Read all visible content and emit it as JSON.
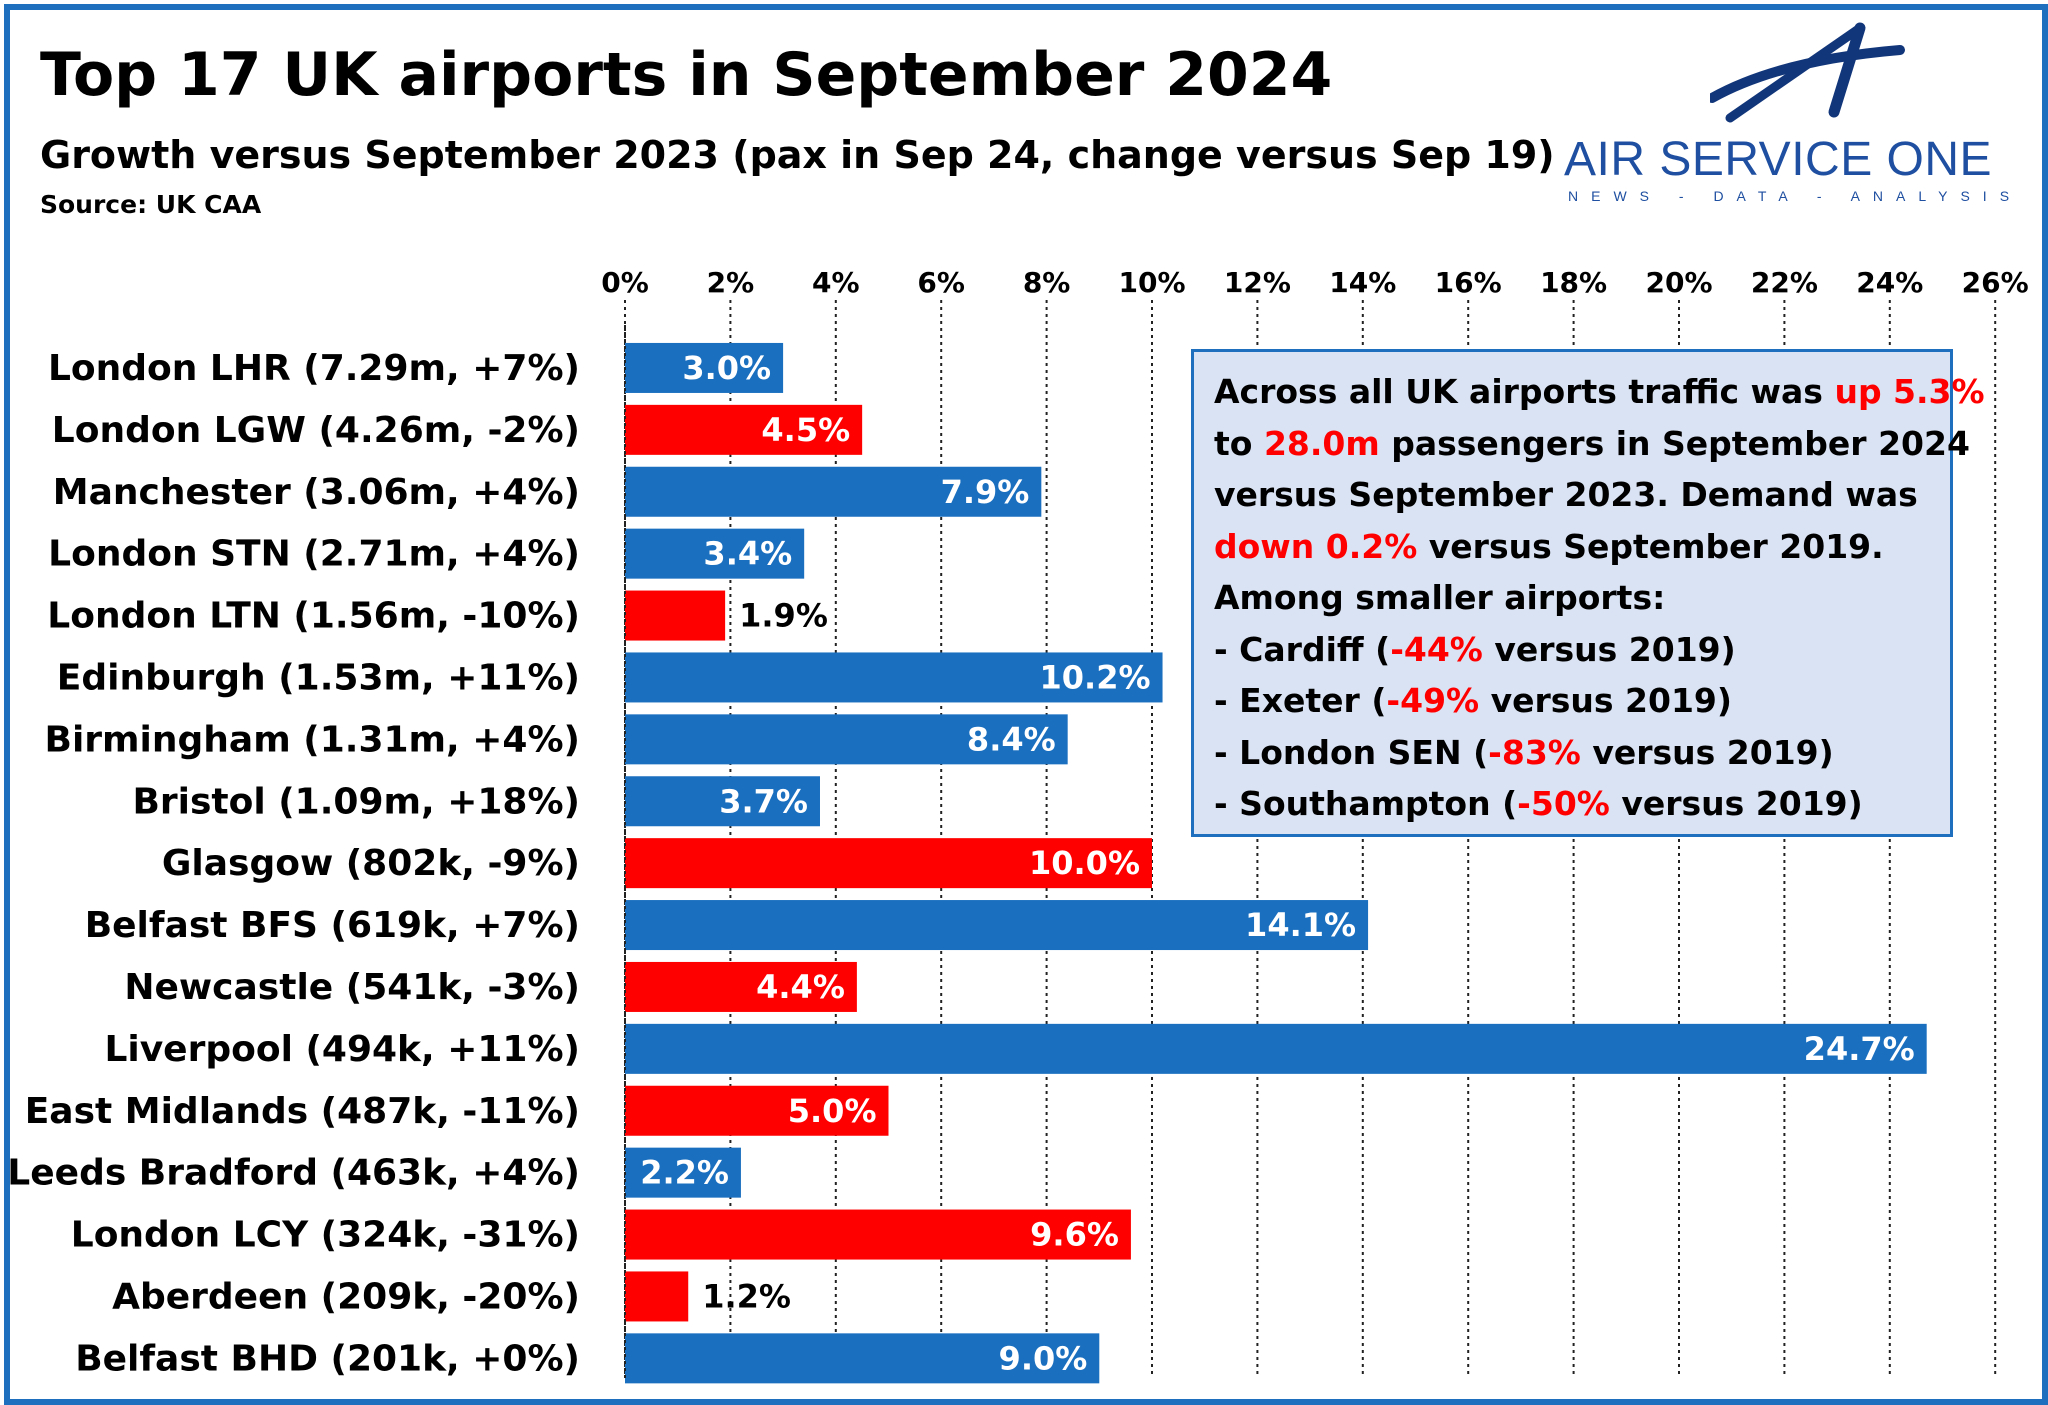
{
  "header": {
    "title": "Top 17 UK airports in September 2024",
    "subtitle": "Growth versus September 2023 (pax in Sep 24, change versus Sep 19)",
    "source": "Source: UK CAA"
  },
  "logo": {
    "name": "AIR SERVICE ONE",
    "tagline": "NEWS - DATA - ANALYSIS",
    "icon": "stylised-A-wing-icon"
  },
  "colors": {
    "accent": "#1f6fbf",
    "positive_bar": "#1a6fbf",
    "negative_bar": "#ff0000",
    "note_bg": "#dae3f3"
  },
  "chart_data": {
    "type": "bar",
    "orientation": "horizontal",
    "title": "Top 17 UK airports in September 2024",
    "xlim": [
      0,
      26
    ],
    "x_ticks": [
      "0%",
      "2%",
      "4%",
      "6%",
      "8%",
      "10%",
      "12%",
      "14%",
      "16%",
      "18%",
      "20%",
      "22%",
      "24%",
      "26%"
    ],
    "grid": "vertical dotted",
    "categories": [
      "London LHR (7.29m, +7%)",
      "London LGW (4.26m, -2%)",
      "Manchester (3.06m, +4%)",
      "London STN (2.71m, +4%)",
      "London LTN (1.56m, -10%)",
      "Edinburgh (1.53m, +11%)",
      "Birmingham (1.31m, +4%)",
      "Bristol (1.09m, +18%)",
      "Glasgow (802k, -9%)",
      "Belfast BFS (619k, +7%)",
      "Newcastle (541k, -3%)",
      "Liverpool (494k, +11%)",
      "East Midlands (487k, -11%)",
      "Leeds Bradford (463k, +4%)",
      "London LCY (324k, -31%)",
      "Aberdeen (209k, -20%)",
      "Belfast BHD (201k, +0%)"
    ],
    "values": [
      3.0,
      4.5,
      7.9,
      3.4,
      1.9,
      10.2,
      8.4,
      3.7,
      10.0,
      14.1,
      4.4,
      24.7,
      5.0,
      2.2,
      9.6,
      1.2,
      9.0
    ],
    "labels": [
      "3.0%",
      "4.5%",
      "7.9%",
      "3.4%",
      "1.9%",
      "10.2%",
      "8.4%",
      "3.7%",
      "10.0%",
      "14.1%",
      "4.4%",
      "24.7%",
      "5.0%",
      "2.2%",
      "9.6%",
      "1.2%",
      "9.0%"
    ],
    "bar_colors": [
      "blue",
      "red",
      "blue",
      "blue",
      "red",
      "blue",
      "blue",
      "blue",
      "red",
      "blue",
      "red",
      "blue",
      "red",
      "blue",
      "red",
      "red",
      "blue"
    ]
  },
  "note": {
    "lines": [
      [
        {
          "t": "Across all UK airports traffic was "
        },
        {
          "t": "up 5.3%",
          "red": true
        }
      ],
      [
        {
          "t": "to "
        },
        {
          "t": "28.0m",
          "red": true
        },
        {
          "t": " passengers in September 2024"
        }
      ],
      [
        {
          "t": "versus September 2023. Demand was"
        }
      ],
      [
        {
          "t": "down 0.2%",
          "red": true
        },
        {
          "t": " versus September 2019."
        }
      ],
      [
        {
          "t": "Among smaller airports:"
        }
      ],
      [
        {
          "t": "- Cardiff ("
        },
        {
          "t": "-44%",
          "red": true
        },
        {
          "t": " versus 2019)"
        }
      ],
      [
        {
          "t": "- Exeter ("
        },
        {
          "t": "-49%",
          "red": true
        },
        {
          "t": " versus 2019)"
        }
      ],
      [
        {
          "t": "- London SEN ("
        },
        {
          "t": "-83%",
          "red": true
        },
        {
          "t": " versus 2019)"
        }
      ],
      [
        {
          "t": "- Southampton ("
        },
        {
          "t": "-50%",
          "red": true
        },
        {
          "t": " versus 2019)"
        }
      ]
    ]
  }
}
